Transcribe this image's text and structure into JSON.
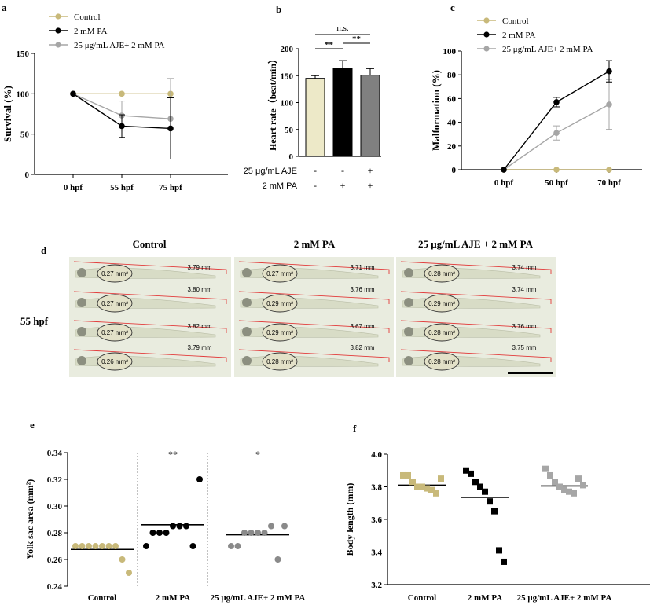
{
  "colors": {
    "control": "#c8b97a",
    "pa": "#000000",
    "aje": "#a6a6a6",
    "aje_dark": "#8a8a8a",
    "red": "#e23a3a",
    "photo_bg": "#e9ecdf"
  },
  "panel_a": {
    "letter": "a",
    "ylabel": "Survival (%)",
    "legend": [
      "Control",
      "2 mM PA",
      "25 μg/mL AJE+ 2 mM PA"
    ],
    "chart_data": {
      "type": "line",
      "categories": [
        "0 hpf",
        "55 hpf",
        "75 hpf"
      ],
      "yticks": [
        "0",
        "50",
        "100",
        "150"
      ],
      "ylim": [
        0,
        150
      ],
      "series": [
        {
          "name": "Control",
          "values": [
            100,
            100,
            100
          ],
          "err": [
            0,
            0,
            0
          ]
        },
        {
          "name": "2 mM PA",
          "values": [
            100,
            60,
            57
          ],
          "err": [
            0,
            14,
            38
          ]
        },
        {
          "name": "25 μg/mL AJE+ 2 mM PA",
          "values": [
            100,
            73,
            69
          ],
          "err": [
            0,
            18,
            50
          ]
        }
      ]
    }
  },
  "panel_b": {
    "letter": "b",
    "ylabel": "Heart rate（beat/min）",
    "ns": "n.s.",
    "sig1": "**",
    "sig2": "**",
    "row1_label": "25 μg/mL AJE",
    "row2_label": "2 mM PA",
    "row1_signs": [
      "-",
      "-",
      "+"
    ],
    "row2_signs": [
      "-",
      "+",
      "+"
    ],
    "chart_data": {
      "type": "bar",
      "yticks": [
        "0",
        "50",
        "100",
        "150",
        "200"
      ],
      "ylim": [
        0,
        200
      ],
      "values": [
        145,
        163,
        151
      ],
      "err": [
        5,
        15,
        12
      ]
    }
  },
  "panel_c": {
    "letter": "c",
    "ylabel": "Malformation (%)",
    "legend": [
      "Control",
      "2 mM PA",
      "25 μg/mL AJE+ 2 mM PA"
    ],
    "chart_data": {
      "type": "line",
      "categories": [
        "0 hpf",
        "50 hpf",
        "70 hpf"
      ],
      "yticks": [
        "0",
        "20",
        "40",
        "60",
        "80",
        "100"
      ],
      "ylim": [
        0,
        100
      ],
      "series": [
        {
          "name": "Control",
          "values": [
            0,
            0,
            0
          ],
          "err": [
            0,
            0,
            0
          ]
        },
        {
          "name": "2 mM PA",
          "values": [
            0,
            57,
            83
          ],
          "err": [
            0,
            4,
            9
          ]
        },
        {
          "name": "25 μg/mL AJE+ 2 mM PA",
          "values": [
            0,
            31,
            55
          ],
          "err": [
            0,
            6,
            21
          ]
        }
      ]
    }
  },
  "panel_d": {
    "letter": "d",
    "row_label": "55 hpf",
    "titles": [
      "Control",
      "2 mM PA",
      "25 μg/mL AJE + 2 mM PA"
    ],
    "photos": [
      {
        "areas": [
          "0.27 mm²",
          "0.27 mm²",
          "0.27 mm²",
          "0.26 mm²"
        ],
        "lengths": [
          "3.79 mm",
          "3.80 mm",
          "3.82 mm",
          "3.79 mm"
        ]
      },
      {
        "areas": [
          "0.27 mm²",
          "0.29 mm²",
          "0.29 mm²",
          "0.28 mm²"
        ],
        "lengths": [
          "3.71 mm",
          "3.76 mm",
          "3.67 mm",
          "3.82 mm"
        ]
      },
      {
        "areas": [
          "0.28 mm²",
          "0.29 mm²",
          "0.28 mm²",
          "0.28 mm²"
        ],
        "lengths": [
          "3.74 mm",
          "3.74 mm",
          "3.76 mm",
          "3.75 mm"
        ]
      }
    ]
  },
  "panel_e": {
    "letter": "e",
    "ylabel": "Yolk sac area (mm²)",
    "sig": [
      "",
      "**",
      "*"
    ],
    "chart_data": {
      "type": "scatter",
      "categories": [
        "Control",
        "2 mM PA",
        "25 μg/mL AJE+ 2 mM PA"
      ],
      "yticks": [
        "0.24",
        "0.26",
        "0.28",
        "0.30",
        "0.32",
        "0.34"
      ],
      "ylim": [
        0.24,
        0.34
      ],
      "groups": [
        {
          "points": [
            0.27,
            0.27,
            0.27,
            0.27,
            0.27,
            0.27,
            0.27,
            0.26,
            0.25
          ],
          "mean": 0.2675
        },
        {
          "points": [
            0.27,
            0.28,
            0.28,
            0.28,
            0.285,
            0.285,
            0.285,
            0.27,
            0.32
          ],
          "mean": 0.286
        },
        {
          "points": [
            0.27,
            0.27,
            0.28,
            0.28,
            0.28,
            0.28,
            0.285,
            0.26,
            0.285
          ],
          "mean": 0.2785
        }
      ]
    }
  },
  "panel_f": {
    "letter": "f",
    "ylabel": "Body length (mm)",
    "chart_data": {
      "type": "scatter",
      "categories": [
        "Control",
        "2 mM PA",
        "25 μg/mL AJE+ 2 mM PA"
      ],
      "yticks": [
        "3.2",
        "3.4",
        "3.6",
        "3.8",
        "4.0"
      ],
      "ylim": [
        3.2,
        4.0
      ],
      "groups": [
        {
          "points": [
            3.87,
            3.87,
            3.83,
            3.8,
            3.8,
            3.79,
            3.78,
            3.76,
            3.85
          ],
          "mean": 3.81
        },
        {
          "points": [
            3.9,
            3.88,
            3.83,
            3.8,
            3.77,
            3.71,
            3.65,
            3.41,
            3.34
          ],
          "mean": 3.735
        },
        {
          "points": [
            3.91,
            3.87,
            3.83,
            3.8,
            3.78,
            3.77,
            3.76,
            3.85,
            3.81
          ],
          "mean": 3.805
        }
      ]
    }
  }
}
